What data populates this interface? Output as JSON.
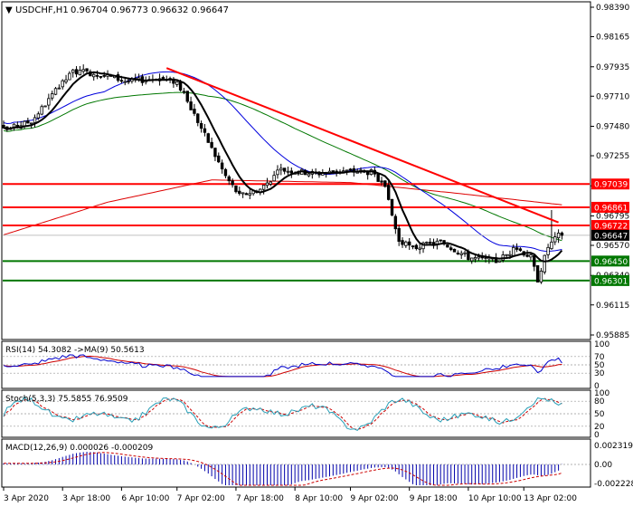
{
  "header": {
    "marker": "▼",
    "symbol": "USDCHF,H1",
    "ohlc": "0.96704 0.96773 0.96632 0.96647"
  },
  "price_axis": {
    "ticks": [
      "0.98390",
      "0.98165",
      "0.97935",
      "0.97710",
      "0.97480",
      "0.97255",
      "0.97025",
      "0.96795",
      "0.96570",
      "0.96340",
      "0.96115",
      "0.95885"
    ]
  },
  "levels": [
    {
      "value": 0.97039,
      "label": "0.97039",
      "color": "#ff0000",
      "style": "red-horizontal"
    },
    {
      "value": 0.96861,
      "label": "0.96861",
      "color": "#ff0000",
      "style": "red-horizontal"
    },
    {
      "value": 0.96722,
      "label": "0.96722",
      "color": "#ff0000",
      "style": "red-horizontal"
    },
    {
      "value": 0.96647,
      "label": "0.96647",
      "color": "#000000",
      "style": "last-price"
    },
    {
      "value": 0.9645,
      "label": "0.96450",
      "color": "#007700",
      "style": "green-horizontal"
    },
    {
      "value": 0.96301,
      "label": "0.96301",
      "color": "#007700",
      "style": "green-horizontal"
    }
  ],
  "trendline": {
    "color": "#ff0000",
    "from": {
      "bar": 47,
      "price": 0.97925
    },
    "to": {
      "bar": 160,
      "price": 0.96745
    }
  },
  "time_axis": {
    "labels": [
      "3 Apr 2020",
      "3 Apr 18:00",
      "6 Apr 10:00",
      "7 Apr 02:00",
      "7 Apr 18:00",
      "8 Apr 10:00",
      "9 Apr 02:00",
      "9 Apr 18:00",
      "10 Apr 10:00",
      "13 Apr 02:00"
    ]
  },
  "rsi": {
    "title": "RSI(14) 54.3082  ->MA(9) 50.5613",
    "ticks": [
      "100",
      "70",
      "50",
      "30",
      "0"
    ]
  },
  "stoch": {
    "title": "Stoch(5,3,3) 75.5855 76.9509",
    "ticks": [
      "100",
      "80",
      "50",
      "20",
      "0"
    ]
  },
  "macd": {
    "title": "MACD(12,26,9) 0.000026 -0.000209",
    "ticks": [
      "0.002319",
      "0.00",
      "-0.002228"
    ]
  },
  "colors": {
    "bull": "#000000",
    "bear": "#000000",
    "ma_fast": "#000000",
    "ma_mid": "#0000dd",
    "ma_slow": "#007700",
    "ma_long": "#dd0000",
    "rsi_line": "#0000cc",
    "rsi_ma": "#cc0000",
    "stoch_main": "#2aa0b8",
    "stoch_signal": "#cc0000",
    "macd_hist": "#0000aa",
    "macd_signal": "#cc0000",
    "red_level": "#ff0000",
    "green_level": "#007700"
  },
  "chart_data": {
    "type": "candlestick",
    "timeframe": "H1",
    "symbol": "USDCHF",
    "x_labels": [
      "3 Apr 2020",
      "3 Apr 18:00",
      "6 Apr 10:00",
      "7 Apr 02:00",
      "7 Apr 18:00",
      "8 Apr 10:00",
      "9 Apr 02:00",
      "9 Apr 18:00",
      "10 Apr 10:00",
      "13 Apr 02:00"
    ],
    "ylim": [
      0.95885,
      0.9839
    ],
    "close_path": [
      {
        "bar": 0,
        "price": 0.9745
      },
      {
        "bar": 8,
        "price": 0.9752
      },
      {
        "bar": 16,
        "price": 0.9778
      },
      {
        "bar": 20,
        "price": 0.979
      },
      {
        "bar": 28,
        "price": 0.9788
      },
      {
        "bar": 36,
        "price": 0.9782
      },
      {
        "bar": 44,
        "price": 0.9785
      },
      {
        "bar": 50,
        "price": 0.9782
      },
      {
        "bar": 56,
        "price": 0.9752
      },
      {
        "bar": 64,
        "price": 0.971
      },
      {
        "bar": 68,
        "price": 0.9695
      },
      {
        "bar": 74,
        "price": 0.97
      },
      {
        "bar": 80,
        "price": 0.9715
      },
      {
        "bar": 90,
        "price": 0.9712
      },
      {
        "bar": 98,
        "price": 0.9714
      },
      {
        "bar": 106,
        "price": 0.9713
      },
      {
        "bar": 110,
        "price": 0.97
      },
      {
        "bar": 114,
        "price": 0.966
      },
      {
        "bar": 118,
        "price": 0.9655
      },
      {
        "bar": 126,
        "price": 0.966
      },
      {
        "bar": 134,
        "price": 0.9648
      },
      {
        "bar": 142,
        "price": 0.9645
      },
      {
        "bar": 148,
        "price": 0.9655
      },
      {
        "bar": 152,
        "price": 0.9648
      },
      {
        "bar": 154,
        "price": 0.9631
      },
      {
        "bar": 157,
        "price": 0.9656
      },
      {
        "bar": 160,
        "price": 0.96647
      }
    ]
  }
}
